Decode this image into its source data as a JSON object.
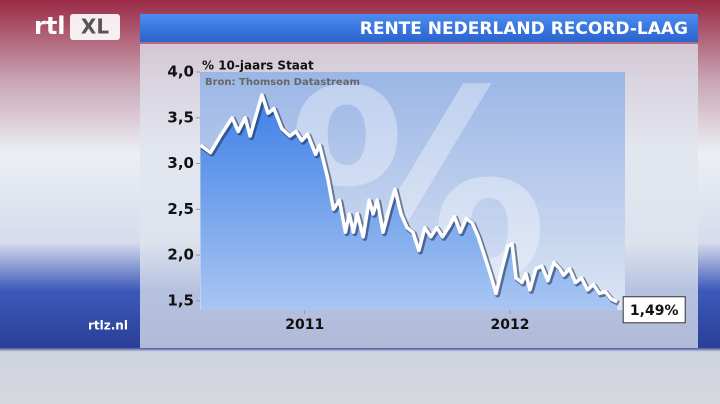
{
  "branding": {
    "logo_left": "rtl",
    "logo_right": "XL",
    "site": "rtlz.nl"
  },
  "chart_data": {
    "type": "area-line",
    "title": "RENTE NEDERLAND RECORD-LAAG",
    "y_label": "% 10-jaars Staat",
    "source": "Bron: Thomson Datastream",
    "watermark": "%",
    "color": "#ffffff",
    "area_color": "#3d7fe6",
    "x": [
      2010.493,
      2010.541,
      2010.589,
      2010.647,
      2010.676,
      2010.71,
      2010.734,
      2010.792,
      2010.821,
      2010.85,
      2010.889,
      2010.928,
      2010.957,
      2010.986,
      2011.014,
      2011.053,
      2011.072,
      2011.111,
      2011.14,
      2011.169,
      2011.198,
      2011.217,
      2011.237,
      2011.256,
      2011.285,
      2011.314,
      2011.333,
      2011.353,
      2011.382,
      2011.411,
      2011.44,
      2011.469,
      2011.498,
      2011.527,
      2011.556,
      2011.585,
      2011.614,
      2011.643,
      2011.671,
      2011.7,
      2011.729,
      2011.758,
      2011.787,
      2011.816,
      2011.845,
      2011.874,
      2011.903,
      2011.932,
      2011.961,
      2011.99,
      2012.01,
      2012.029,
      2012.058,
      2012.077,
      2012.097,
      2012.126,
      2012.155,
      2012.184,
      2012.213,
      2012.242,
      2012.261,
      2012.29,
      2012.319,
      2012.348,
      2012.377,
      2012.406,
      2012.435,
      2012.464,
      2012.493,
      2012.522
    ],
    "values": [
      3.2,
      3.12,
      3.3,
      3.5,
      3.35,
      3.5,
      3.3,
      3.75,
      3.55,
      3.6,
      3.38,
      3.3,
      3.35,
      3.25,
      3.32,
      3.1,
      3.2,
      2.85,
      2.5,
      2.6,
      2.25,
      2.45,
      2.25,
      2.45,
      2.2,
      2.6,
      2.45,
      2.6,
      2.25,
      2.5,
      2.72,
      2.45,
      2.3,
      2.25,
      2.05,
      2.3,
      2.2,
      2.3,
      2.2,
      2.3,
      2.42,
      2.25,
      2.4,
      2.35,
      2.2,
      2.0,
      1.8,
      1.58,
      1.85,
      2.1,
      2.12,
      1.75,
      1.7,
      1.8,
      1.62,
      1.85,
      1.88,
      1.72,
      1.92,
      1.85,
      1.78,
      1.85,
      1.7,
      1.75,
      1.62,
      1.68,
      1.58,
      1.6,
      1.52,
      1.49
    ],
    "value_labels": [
      null,
      null,
      null,
      null,
      null,
      null,
      null,
      null,
      null,
      null,
      null,
      null,
      null,
      null,
      null,
      null,
      null,
      null,
      null,
      null,
      null,
      null,
      null,
      null,
      null,
      null,
      null,
      null,
      null,
      null,
      null,
      null,
      null,
      null,
      null,
      null,
      null,
      null,
      null,
      null,
      null,
      null,
      null,
      null,
      null,
      null,
      null,
      null,
      null,
      null,
      null,
      null,
      null,
      null,
      null,
      null,
      null,
      null,
      null,
      null,
      null,
      null,
      null,
      null,
      null,
      null,
      null,
      null,
      null,
      "1,49%"
    ],
    "xlim": [
      2010.49,
      2012.56
    ],
    "xticks": [
      2011,
      2012
    ],
    "ylim": [
      1.4,
      4.0
    ],
    "yticks": [
      {
        "value": 1.5,
        "label": "1,5"
      },
      {
        "value": 2.0,
        "label": "2,0"
      },
      {
        "value": 2.5,
        "label": "2,5"
      },
      {
        "value": 3.0,
        "label": "3,0"
      },
      {
        "value": 3.5,
        "label": "3,5"
      },
      {
        "value": 4.0,
        "label": "4,0"
      }
    ],
    "grid": false
  }
}
